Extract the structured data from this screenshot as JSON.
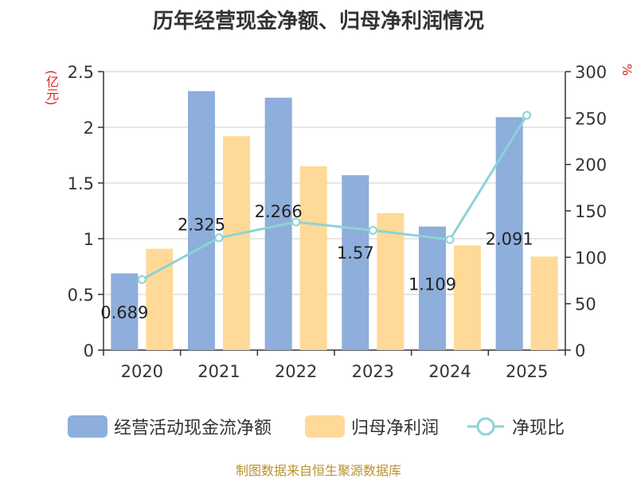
{
  "title": "历年经营现金净额、归母净利润情况",
  "source": "制图数据来自恒生聚源数据库",
  "chart_data": {
    "type": "bar",
    "categories": [
      "2020",
      "2021",
      "2022",
      "2023",
      "2024",
      "2025"
    ],
    "series": [
      {
        "name": "经营活动现金流净额",
        "type": "bar",
        "axis": "left",
        "color": "#8eaedb",
        "values": [
          0.689,
          2.325,
          2.266,
          1.57,
          1.109,
          2.091
        ]
      },
      {
        "name": "归母净利润",
        "type": "bar",
        "axis": "left",
        "color": "#fed998",
        "values": [
          0.91,
          1.92,
          1.65,
          1.23,
          0.94,
          0.84
        ]
      },
      {
        "name": "净现比",
        "type": "line",
        "axis": "right",
        "color": "#8dd3d6",
        "values": [
          76,
          121,
          138,
          129,
          119,
          253
        ]
      }
    ],
    "data_labels": [
      "0.689",
      "2.325",
      "2.266",
      "1.57",
      "1.109",
      "2.091"
    ],
    "y_left": {
      "label": "(亿元)",
      "ylim": [
        0,
        2.5
      ],
      "ticks": [
        "0",
        "0.5",
        "1",
        "1.5",
        "2",
        "2.5"
      ]
    },
    "y_right": {
      "label": "%",
      "ylim": [
        0,
        300
      ],
      "ticks": [
        "0",
        "50",
        "100",
        "150",
        "200",
        "250",
        "300"
      ]
    },
    "grid": true,
    "legend_position": "bottom"
  }
}
